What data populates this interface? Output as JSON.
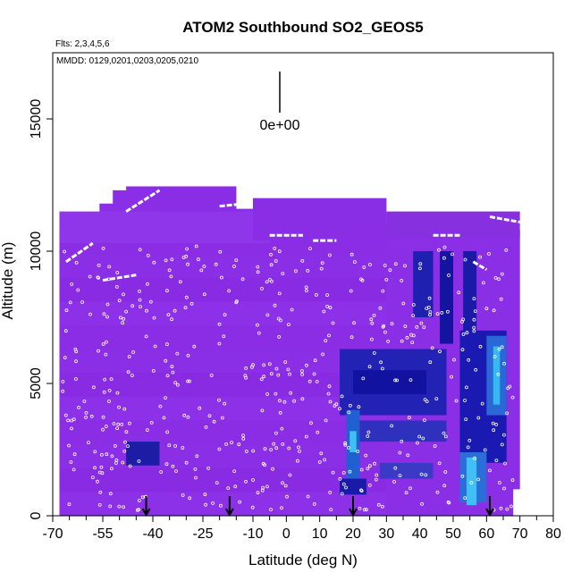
{
  "chart_data": {
    "type": "heatmap",
    "title": "ATOM2 Southbound SO2_GEOS5",
    "subtitle_flights": "Flts: 2,3,4,5,6",
    "subtitle_dates": "MMDD: 0129,0201,0203,0205,0210",
    "xlabel": "Latitude (deg N)",
    "ylabel": "Altitude (m)",
    "xlim": [
      -70,
      80
    ],
    "ylim": [
      0,
      17500
    ],
    "x_ticks": [
      -70,
      -55,
      -40,
      -25,
      -10,
      0,
      10,
      20,
      30,
      40,
      50,
      60,
      70,
      80
    ],
    "x_minor_ticks": [
      -65,
      -60,
      -50,
      -45,
      -35,
      -30,
      -20,
      -15,
      -5,
      5,
      15,
      25,
      35,
      45,
      55,
      65,
      75
    ],
    "y_ticks": [
      0,
      5000,
      10000,
      15000
    ],
    "colorbar_label": "0e+00",
    "colorbar_value": 0,
    "colors": {
      "background_field": "#8a2be2",
      "enhanced_low": "#1a1aa8",
      "enhanced_high": "#38b8f0",
      "samples": "#ffffff"
    },
    "cells": [
      {
        "x0": -68,
        "x1": -5,
        "y0": 10300,
        "y1": 11500,
        "c": "#8f36ea"
      },
      {
        "x0": -40,
        "x1": -15,
        "y0": 11500,
        "y1": 12450,
        "c": "#8a2ee6"
      },
      {
        "x0": -10,
        "x1": 30,
        "y0": 10400,
        "y1": 12000,
        "c": "#8a2ee6"
      },
      {
        "x0": 30,
        "x1": 70,
        "y0": 10500,
        "y1": 11500,
        "c": "#8730e0"
      },
      {
        "x0": 38,
        "x1": 44,
        "y0": 7500,
        "y1": 10000,
        "c": "#2020b0"
      },
      {
        "x0": 46,
        "x1": 50,
        "y0": 6500,
        "y1": 10000,
        "c": "#1414a0"
      },
      {
        "x0": 53,
        "x1": 57,
        "y0": 5500,
        "y1": 10000,
        "c": "#1a1aa6"
      },
      {
        "x0": 52,
        "x1": 66,
        "y0": 2000,
        "y1": 7000,
        "c": "#1a1ab2"
      },
      {
        "x0": 60,
        "x1": 66,
        "y0": 3800,
        "y1": 6800,
        "c": "#2a68d8"
      },
      {
        "x0": 62,
        "x1": 64,
        "y0": 4200,
        "y1": 6400,
        "c": "#38b8f0"
      },
      {
        "x0": 52,
        "x1": 60,
        "y0": 500,
        "y1": 2400,
        "c": "#2a6ed8"
      },
      {
        "x0": 54,
        "x1": 57,
        "y0": 400,
        "y1": 2200,
        "c": "#40c0f4"
      },
      {
        "x0": 16,
        "x1": 48,
        "y0": 3800,
        "y1": 6300,
        "c": "#2222b4"
      },
      {
        "x0": 20,
        "x1": 42,
        "y0": 4600,
        "y1": 5500,
        "c": "#1212a0"
      },
      {
        "x0": 18,
        "x1": 22,
        "y0": 1000,
        "y1": 4000,
        "c": "#2060d0"
      },
      {
        "x0": 19,
        "x1": 21,
        "y0": 2400,
        "y1": 3200,
        "c": "#40c0f0"
      },
      {
        "x0": 16,
        "x1": 24,
        "y0": 800,
        "y1": 1400,
        "c": "#1a1aa8"
      },
      {
        "x0": -48,
        "x1": -38,
        "y0": 1900,
        "y1": 2800,
        "c": "#1c1ca4"
      },
      {
        "x0": 22,
        "x1": 48,
        "y0": 2800,
        "y1": 3600,
        "c": "#3030be"
      },
      {
        "x0": 28,
        "x1": 44,
        "y0": 1400,
        "y1": 2000,
        "c": "#3a3ac6"
      }
    ],
    "arrows_lat": [
      -42,
      -17,
      20,
      61
    ]
  }
}
